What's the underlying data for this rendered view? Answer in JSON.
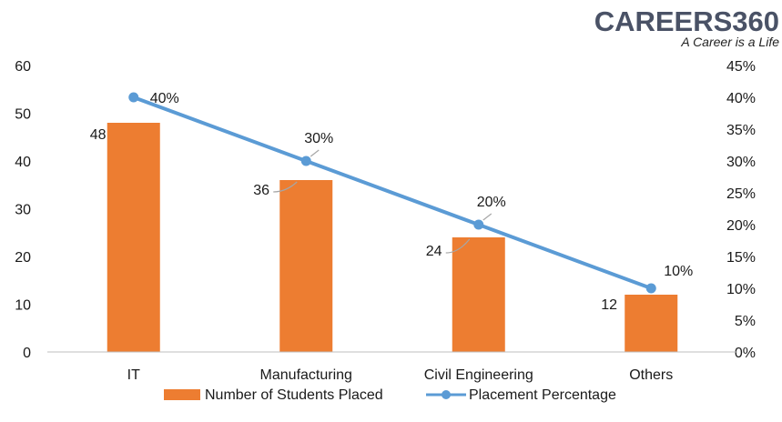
{
  "logo": {
    "name": "CAREERS360",
    "tagline": "A Career is a Life"
  },
  "colors": {
    "bar": "#ED7D31",
    "line": "#5B9BD5",
    "axis": "#BFBFBF",
    "connector": "#A6A6A6"
  },
  "chart_data": {
    "type": "bar",
    "categories": [
      "IT",
      "Manufacturing",
      "Civil Engineering",
      "Others"
    ],
    "series": [
      {
        "name": "Number of Students Placed",
        "type": "bar",
        "axis": "left",
        "values": [
          48,
          36,
          24,
          12
        ],
        "labels": [
          "48",
          "36",
          "24",
          "12"
        ]
      },
      {
        "name": "Placement Percentage",
        "type": "line",
        "axis": "right",
        "values": [
          40,
          30,
          20,
          10
        ],
        "labels": [
          "40%",
          "30%",
          "20%",
          "10%"
        ]
      }
    ],
    "y_left": {
      "min": 0,
      "max": 60,
      "step": 10,
      "ticks": [
        "0",
        "10",
        "20",
        "30",
        "40",
        "50",
        "60"
      ]
    },
    "y_right": {
      "min": 0,
      "max": 45,
      "step": 5,
      "ticks": [
        "0%",
        "5%",
        "10%",
        "15%",
        "20%",
        "25%",
        "30%",
        "35%",
        "40%",
        "45%"
      ]
    },
    "grid": false,
    "legend_position": "bottom",
    "title": "",
    "xlabel": "",
    "ylabel": ""
  }
}
